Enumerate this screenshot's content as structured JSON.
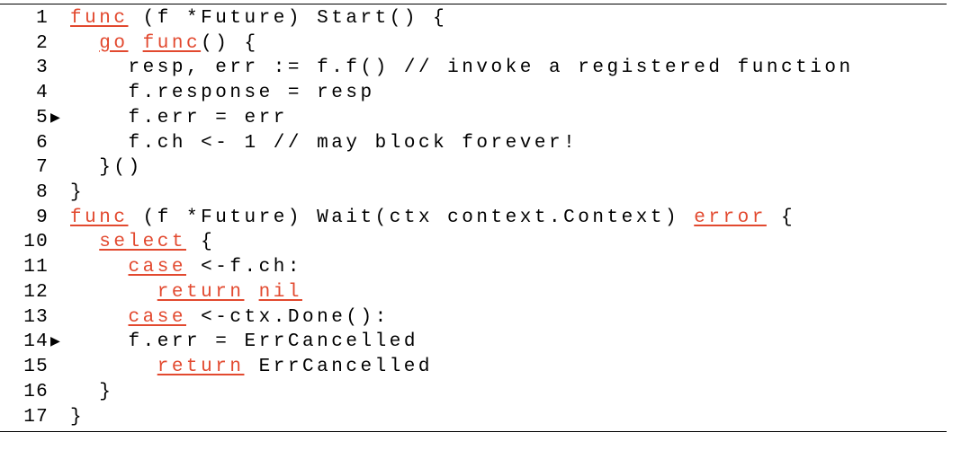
{
  "listing": {
    "font_family": "Courier New, monospace",
    "font_size_pt": 16,
    "letter_spacing_em": 0.22,
    "keyword_color": "#e2492f",
    "keyword_underline": true,
    "text_color": "#000000",
    "background_color": "#ffffff",
    "rule_color": "#000000",
    "marker_glyph": "▶",
    "lines": [
      {
        "n": 1,
        "marker": false,
        "indent": "",
        "tokens": [
          {
            "t": "func",
            "kw": true
          },
          {
            "t": " (f *Future) Start() {",
            "kw": false
          }
        ]
      },
      {
        "n": 2,
        "marker": false,
        "indent": "  ",
        "tokens": [
          {
            "t": "go",
            "kw": true
          },
          {
            "t": " ",
            "kw": false
          },
          {
            "t": "func",
            "kw": true
          },
          {
            "t": "() {",
            "kw": false
          }
        ]
      },
      {
        "n": 3,
        "marker": false,
        "indent": "    ",
        "tokens": [
          {
            "t": "resp, err := f.f() // invoke a registered function",
            "kw": false
          }
        ]
      },
      {
        "n": 4,
        "marker": false,
        "indent": "    ",
        "tokens": [
          {
            "t": "f.response = resp",
            "kw": false
          }
        ]
      },
      {
        "n": 5,
        "marker": true,
        "indent": "    ",
        "tokens": [
          {
            "t": "f.err = err",
            "kw": false
          }
        ]
      },
      {
        "n": 6,
        "marker": false,
        "indent": "    ",
        "tokens": [
          {
            "t": "f.ch <- 1 // may block forever!",
            "kw": false
          }
        ]
      },
      {
        "n": 7,
        "marker": false,
        "indent": "  ",
        "tokens": [
          {
            "t": "}()",
            "kw": false
          }
        ]
      },
      {
        "n": 8,
        "marker": false,
        "indent": "",
        "tokens": [
          {
            "t": "}",
            "kw": false
          }
        ]
      },
      {
        "n": 9,
        "marker": false,
        "indent": "",
        "tokens": [
          {
            "t": "func",
            "kw": true
          },
          {
            "t": " (f *Future) Wait(ctx context.Context) ",
            "kw": false
          },
          {
            "t": "error",
            "kw": true
          },
          {
            "t": " {",
            "kw": false
          }
        ]
      },
      {
        "n": 10,
        "marker": false,
        "indent": "  ",
        "tokens": [
          {
            "t": "select",
            "kw": true
          },
          {
            "t": " {",
            "kw": false
          }
        ]
      },
      {
        "n": 11,
        "marker": false,
        "indent": "    ",
        "tokens": [
          {
            "t": "case",
            "kw": true
          },
          {
            "t": " <-f.ch:",
            "kw": false
          }
        ]
      },
      {
        "n": 12,
        "marker": false,
        "indent": "      ",
        "tokens": [
          {
            "t": "return",
            "kw": true
          },
          {
            "t": " ",
            "kw": false
          },
          {
            "t": "nil",
            "kw": true
          }
        ]
      },
      {
        "n": 13,
        "marker": false,
        "indent": "    ",
        "tokens": [
          {
            "t": "case",
            "kw": true
          },
          {
            "t": " <-ctx.Done():",
            "kw": false
          }
        ]
      },
      {
        "n": 14,
        "marker": true,
        "indent": "    ",
        "tokens": [
          {
            "t": "f.err = ErrCancelled",
            "kw": false
          }
        ]
      },
      {
        "n": 15,
        "marker": false,
        "indent": "      ",
        "tokens": [
          {
            "t": "return",
            "kw": true
          },
          {
            "t": " ErrCancelled",
            "kw": false
          }
        ]
      },
      {
        "n": 16,
        "marker": false,
        "indent": "  ",
        "tokens": [
          {
            "t": "}",
            "kw": false
          }
        ]
      },
      {
        "n": 17,
        "marker": false,
        "indent": "",
        "tokens": [
          {
            "t": "}",
            "kw": false
          }
        ]
      }
    ]
  }
}
